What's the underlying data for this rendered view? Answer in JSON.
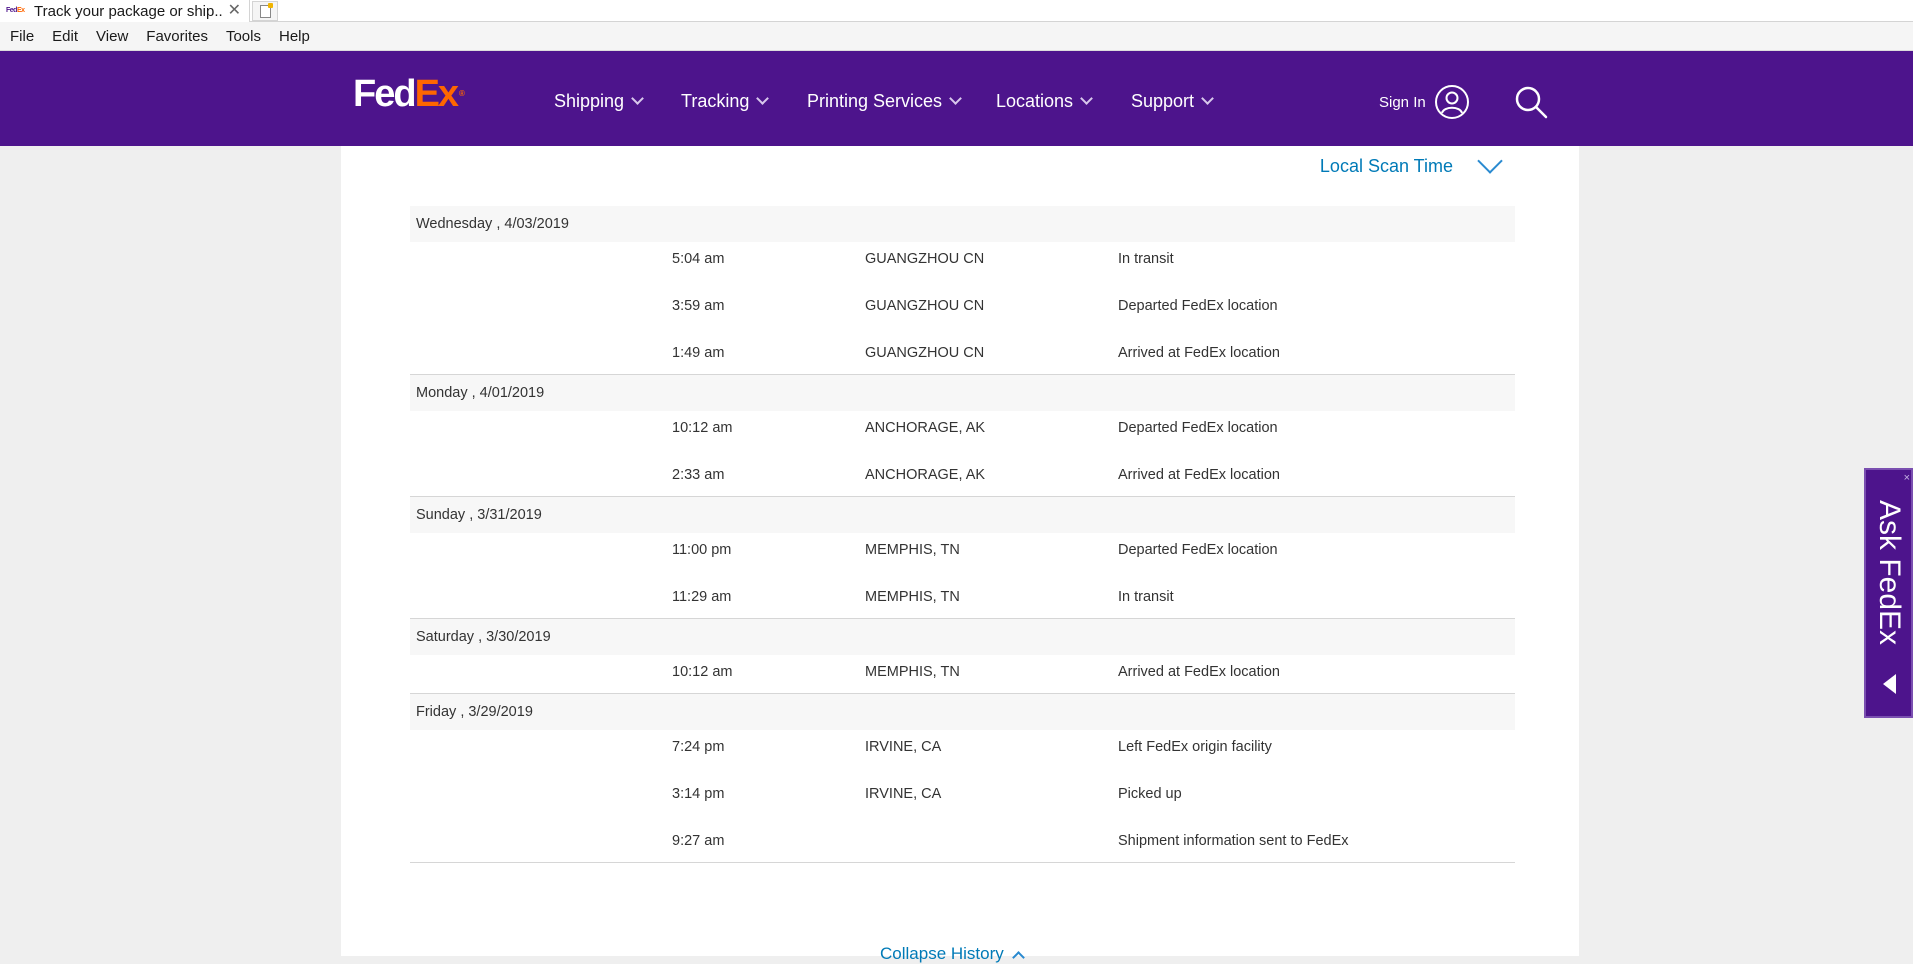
{
  "browser": {
    "tab_title": "Track your package or ship...",
    "tab_close": "✕",
    "menu": [
      "File",
      "Edit",
      "View",
      "Favorites",
      "Tools",
      "Help"
    ]
  },
  "header": {
    "logo_fed": "Fed",
    "logo_ex": "Ex",
    "logo_reg": "®",
    "nav": [
      "Shipping",
      "Tracking",
      "Printing Services",
      "Locations",
      "Support"
    ],
    "sign_in": "Sign In",
    "colors": {
      "purple": "#4d148c",
      "orange": "#ff6600"
    }
  },
  "history": {
    "scan_time_label": "Local Scan Time",
    "days": [
      {
        "date": "Wednesday , 4/03/2019",
        "events": [
          {
            "time": "5:04 am",
            "location": "GUANGZHOU CN",
            "status": "In transit"
          },
          {
            "time": "3:59 am",
            "location": "GUANGZHOU CN",
            "status": "Departed FedEx location"
          },
          {
            "time": "1:49 am",
            "location": "GUANGZHOU CN",
            "status": "Arrived at FedEx location"
          }
        ]
      },
      {
        "date": "Monday , 4/01/2019",
        "events": [
          {
            "time": "10:12 am",
            "location": "ANCHORAGE, AK",
            "status": "Departed FedEx location"
          },
          {
            "time": "2:33 am",
            "location": "ANCHORAGE, AK",
            "status": "Arrived at FedEx location"
          }
        ]
      },
      {
        "date": "Sunday , 3/31/2019",
        "events": [
          {
            "time": "11:00 pm",
            "location": "MEMPHIS, TN",
            "status": "Departed FedEx location"
          },
          {
            "time": "11:29 am",
            "location": "MEMPHIS, TN",
            "status": "In transit"
          }
        ]
      },
      {
        "date": "Saturday , 3/30/2019",
        "events": [
          {
            "time": "10:12 am",
            "location": "MEMPHIS, TN",
            "status": "Arrived at FedEx location"
          }
        ]
      },
      {
        "date": "Friday , 3/29/2019",
        "events": [
          {
            "time": "7:24 pm",
            "location": "IRVINE, CA",
            "status": "Left FedEx origin facility"
          },
          {
            "time": "3:14 pm",
            "location": "IRVINE, CA",
            "status": "Picked up"
          },
          {
            "time": "9:27 am",
            "location": "",
            "status": "Shipment information sent to FedEx"
          }
        ]
      }
    ],
    "collapse_label": "Collapse History"
  },
  "ask_fedex": {
    "label": "Ask FedEx",
    "close": "×"
  }
}
